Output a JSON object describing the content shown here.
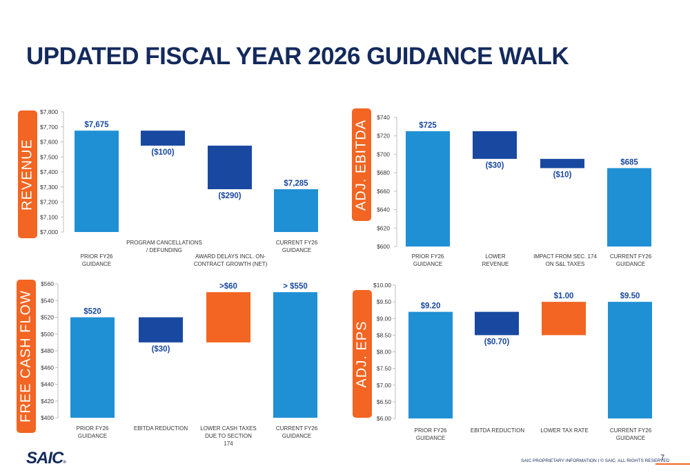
{
  "title": "UPDATED FISCAL YEAR 2026 GUIDANCE WALK",
  "footer": {
    "logo": "SAIC",
    "logo_mark": "®",
    "text": "SAIC PROPRIETARY INFORMATION  I  © SAIC. ALL RIGHTS RESERVED",
    "page": "7"
  },
  "colors": {
    "blue": "#2090d4",
    "navy": "#1848a0",
    "orange": "#f26522",
    "title": "#142a5c"
  },
  "chart_data": [
    {
      "id": "revenue",
      "type": "bar",
      "title": "REVENUE",
      "ylim": [
        7000,
        7800
      ],
      "ticks": [
        "$7,000",
        "$7,100",
        "$7,200",
        "$7,300",
        "$7,400",
        "$7,500",
        "$7,600",
        "$7,700",
        "$7,800"
      ],
      "categories": [
        "PRIOR FY26 GUIDANCE",
        "PROGRAM CANCELLATIONS / DEFUNDING",
        "AWARD DELAYS INCL. ON-CONTRACT GROWTH (NET)",
        "CURRENT FY26 GUIDANCE"
      ],
      "bars": [
        {
          "base": 7000,
          "top": 7675,
          "color": "#2090d4",
          "label": "$7,675",
          "label_pos": "above"
        },
        {
          "base": 7675,
          "top": 7575,
          "color": "#1848a0",
          "label": "($100)",
          "label_pos": "below"
        },
        {
          "base": 7575,
          "top": 7285,
          "color": "#1848a0",
          "label": "($290)",
          "label_pos": "below"
        },
        {
          "base": 7000,
          "top": 7285,
          "color": "#2090d4",
          "label": "$7,285",
          "label_pos": "above"
        }
      ]
    },
    {
      "id": "ebitda",
      "type": "bar",
      "title": "ADJ. EBITDA",
      "ylim": [
        600,
        740
      ],
      "ticks": [
        "$600",
        "$620",
        "$640",
        "$660",
        "$680",
        "$700",
        "$720",
        "$740"
      ],
      "categories": [
        "PRIOR FY26 GUIDANCE",
        "LOWER REVENUE",
        "IMPACT FROM SEC. 174 ON S&L TAXES",
        "CURRENT FY26 GUIDANCE"
      ],
      "bars": [
        {
          "base": 600,
          "top": 725,
          "color": "#2090d4",
          "label": "$725",
          "label_pos": "above"
        },
        {
          "base": 725,
          "top": 695,
          "color": "#1848a0",
          "label": "($30)",
          "label_pos": "below"
        },
        {
          "base": 695,
          "top": 685,
          "color": "#1848a0",
          "label": "($10)",
          "label_pos": "below"
        },
        {
          "base": 600,
          "top": 685,
          "color": "#2090d4",
          "label": "$685",
          "label_pos": "above"
        }
      ]
    },
    {
      "id": "fcf",
      "type": "bar",
      "title": "FREE CASH FLOW",
      "ylim": [
        400,
        560
      ],
      "ticks": [
        "$400",
        "$420",
        "$440",
        "$460",
        "$480",
        "$500",
        "$520",
        "$540",
        "$560"
      ],
      "categories": [
        "PRIOR FY26 GUIDANCE",
        "EBITDA REDUCTION",
        "LOWER CASH TAXES DUE TO SECTION 174",
        "CURRENT FY26 GUIDANCE"
      ],
      "bars": [
        {
          "base": 400,
          "top": 520,
          "color": "#2090d4",
          "label": "$520",
          "label_pos": "above"
        },
        {
          "base": 520,
          "top": 490,
          "color": "#1848a0",
          "label": "($30)",
          "label_pos": "below"
        },
        {
          "base": 490,
          "top": 550,
          "color": "#f26522",
          "label": ">$60",
          "label_pos": "above"
        },
        {
          "base": 400,
          "top": 550,
          "color": "#2090d4",
          "label": "> $550",
          "label_pos": "above"
        }
      ]
    },
    {
      "id": "eps",
      "type": "bar",
      "title": "ADJ. EPS",
      "ylim": [
        6.0,
        10.0
      ],
      "ticks": [
        "$6.00",
        "$6.50",
        "$7.00",
        "$7.50",
        "$8.00",
        "$8.50",
        "$9.00",
        "$9.50",
        "$10.00"
      ],
      "categories": [
        "PRIOR FY26 GUIDANCE",
        "EBITDA REDUCTION",
        "LOWER TAX RATE",
        "CURRENT FY26 GUIDANCE"
      ],
      "bars": [
        {
          "base": 6.0,
          "top": 9.2,
          "color": "#2090d4",
          "label": "$9.20",
          "label_pos": "above"
        },
        {
          "base": 9.2,
          "top": 8.5,
          "color": "#1848a0",
          "label": "($0.70)",
          "label_pos": "below"
        },
        {
          "base": 8.5,
          "top": 9.5,
          "color": "#f26522",
          "label": "$1.00",
          "label_pos": "above"
        },
        {
          "base": 6.0,
          "top": 9.5,
          "color": "#2090d4",
          "label": "$9.50",
          "label_pos": "above"
        }
      ]
    }
  ]
}
